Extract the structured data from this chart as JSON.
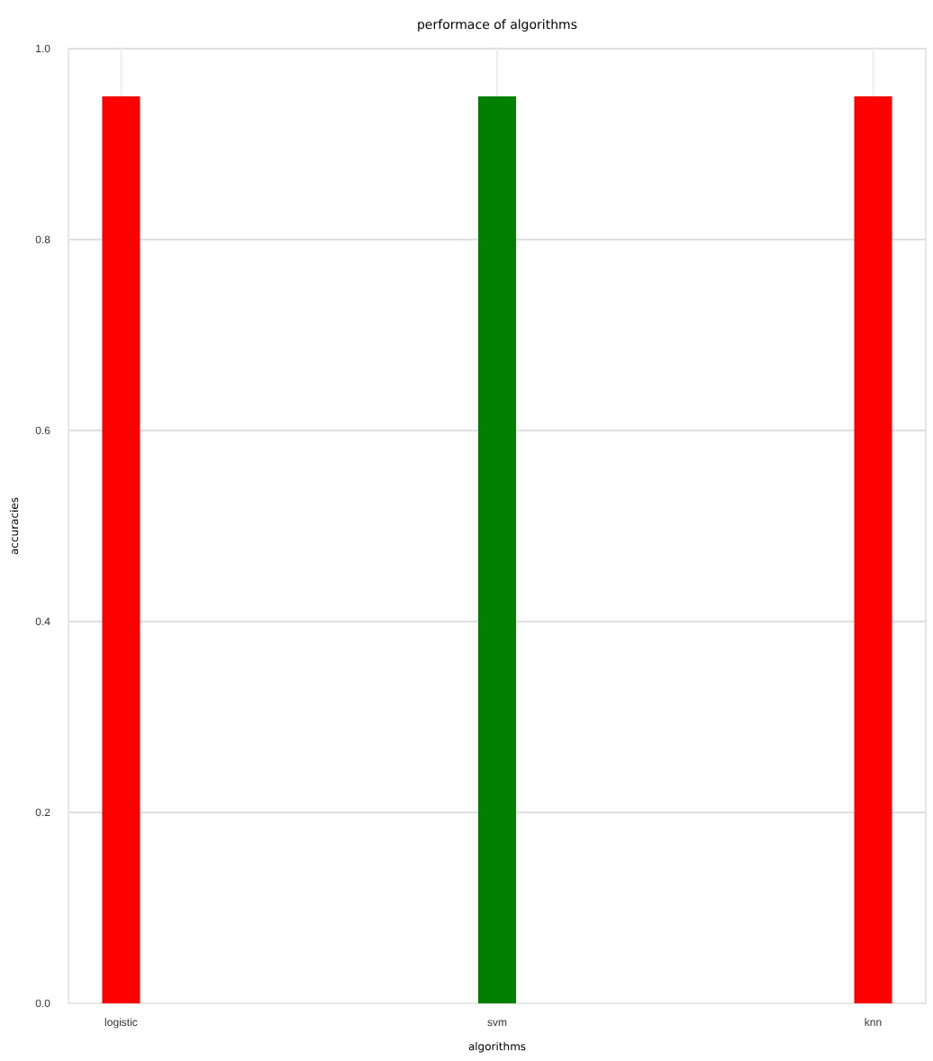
{
  "chart_data": {
    "type": "bar",
    "title": "performace of algorithms",
    "xlabel": "algorithms",
    "ylabel": "accuracies",
    "categories": [
      "logistic",
      "svm",
      "knn"
    ],
    "values": [
      0.95,
      0.95,
      0.95
    ],
    "colors": [
      "#ff0000",
      "#008000",
      "#ff0000"
    ],
    "ylim": [
      0,
      1
    ],
    "yticks": [
      {
        "value": 0,
        "label": "0.0"
      },
      {
        "value": 0.2,
        "label": "0.2"
      },
      {
        "value": 0.4,
        "label": "0.4"
      },
      {
        "value": 0.6,
        "label": "0.6"
      },
      {
        "value": 0.8,
        "label": "0.8"
      },
      {
        "value": 1,
        "label": "1.0"
      }
    ],
    "grid": true
  }
}
